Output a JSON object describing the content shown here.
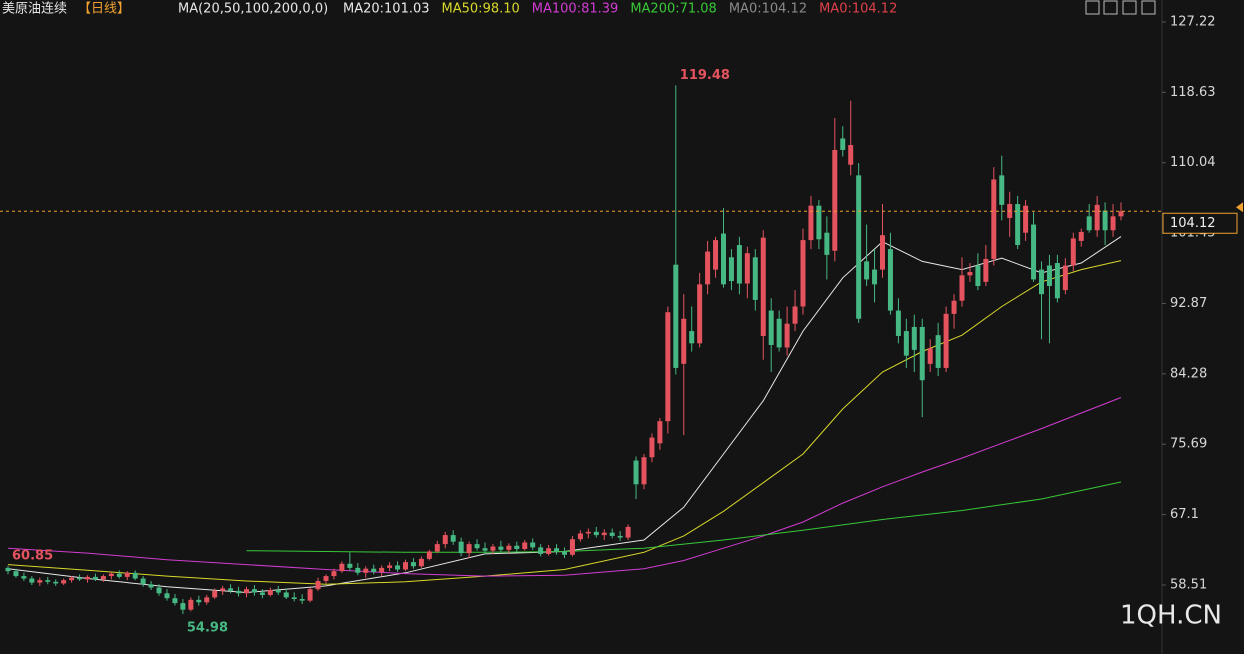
{
  "chart_data": {
    "type": "candlestick",
    "title": "美原油连续",
    "period": "【日线】",
    "indicator": "MA(20,50,100,200,0,0)",
    "up_color": "#e5535f",
    "down_color": "#46b883",
    "ylim": [
      50.09,
      129.9
    ],
    "yticks": [
      58.51,
      67.1,
      75.69,
      84.28,
      92.87,
      101.45,
      110.04,
      118.63,
      127.22
    ],
    "last_price": 104.12,
    "candles": [
      [
        60.6,
        60.85,
        59.8,
        60.2
      ],
      [
        60.2,
        60.5,
        59.4,
        59.6
      ],
      [
        59.6,
        60.0,
        59.0,
        59.3
      ],
      [
        59.3,
        59.6,
        58.5,
        58.8
      ],
      [
        58.8,
        59.4,
        58.4,
        59.1
      ],
      [
        59.1,
        59.5,
        58.6,
        58.9
      ],
      [
        58.9,
        59.2,
        58.4,
        58.7
      ],
      [
        58.7,
        59.3,
        58.5,
        59.1
      ],
      [
        59.1,
        59.6,
        58.8,
        59.4
      ],
      [
        59.4,
        59.8,
        59.0,
        59.2
      ],
      [
        59.2,
        59.7,
        58.8,
        59.5
      ],
      [
        59.5,
        59.9,
        59.0,
        59.2
      ],
      [
        59.2,
        59.8,
        58.9,
        59.6
      ],
      [
        59.6,
        60.1,
        59.2,
        59.9
      ],
      [
        59.9,
        60.3,
        59.3,
        59.5
      ],
      [
        59.5,
        60.2,
        59.1,
        60.0
      ],
      [
        60.0,
        60.3,
        59.1,
        59.3
      ],
      [
        59.3,
        59.6,
        58.3,
        58.6
      ],
      [
        58.6,
        59.0,
        57.9,
        58.2
      ],
      [
        58.2,
        58.6,
        57.2,
        57.5
      ],
      [
        57.5,
        58.0,
        56.6,
        56.9
      ],
      [
        56.9,
        57.4,
        56.0,
        56.3
      ],
      [
        56.3,
        56.8,
        54.98,
        55.5
      ],
      [
        55.5,
        57.0,
        55.3,
        56.7
      ],
      [
        56.7,
        57.2,
        56.0,
        56.4
      ],
      [
        56.4,
        57.3,
        56.1,
        57.0
      ],
      [
        57.0,
        58.1,
        56.8,
        57.8
      ],
      [
        57.8,
        58.4,
        57.3,
        58.1
      ],
      [
        58.1,
        58.6,
        57.5,
        57.8
      ],
      [
        57.8,
        58.3,
        57.1,
        57.5
      ],
      [
        57.5,
        58.3,
        57.0,
        58.0
      ],
      [
        58.0,
        58.5,
        57.2,
        57.6
      ],
      [
        57.6,
        58.0,
        56.9,
        57.3
      ],
      [
        57.3,
        58.2,
        57.1,
        57.9
      ],
      [
        57.9,
        58.4,
        57.3,
        57.6
      ],
      [
        57.6,
        58.1,
        56.8,
        57.0
      ],
      [
        57.0,
        57.6,
        56.5,
        56.8
      ],
      [
        56.8,
        57.4,
        56.2,
        56.6
      ],
      [
        56.6,
        58.2,
        56.4,
        58.0
      ],
      [
        58.0,
        59.4,
        57.8,
        59.0
      ],
      [
        59.0,
        59.8,
        58.7,
        59.6
      ],
      [
        59.6,
        60.5,
        59.2,
        60.2
      ],
      [
        60.2,
        61.4,
        60.0,
        61.1
      ],
      [
        61.1,
        62.5,
        60.2,
        60.6
      ],
      [
        60.6,
        61.2,
        59.7,
        60.0
      ],
      [
        60.0,
        60.8,
        59.4,
        60.5
      ],
      [
        60.5,
        61.0,
        59.8,
        60.1
      ],
      [
        60.1,
        60.9,
        59.6,
        60.6
      ],
      [
        60.6,
        61.3,
        60.2,
        60.9
      ],
      [
        60.9,
        61.4,
        60.1,
        60.4
      ],
      [
        60.4,
        61.6,
        60.2,
        61.3
      ],
      [
        61.3,
        61.8,
        60.5,
        60.8
      ],
      [
        60.8,
        62.0,
        60.6,
        61.7
      ],
      [
        61.7,
        62.8,
        61.5,
        62.6
      ],
      [
        62.6,
        63.9,
        62.4,
        63.5
      ],
      [
        63.5,
        65.0,
        63.0,
        64.6
      ],
      [
        64.6,
        65.2,
        63.4,
        63.8
      ],
      [
        63.8,
        64.3,
        62.0,
        62.4
      ],
      [
        62.4,
        63.8,
        61.8,
        63.5
      ],
      [
        63.5,
        64.1,
        62.7,
        63.0
      ],
      [
        63.0,
        63.7,
        62.2,
        62.7
      ],
      [
        62.7,
        63.5,
        62.3,
        63.2
      ],
      [
        63.2,
        63.9,
        62.5,
        62.8
      ],
      [
        62.8,
        63.6,
        62.4,
        63.3
      ],
      [
        63.3,
        63.8,
        62.6,
        62.9
      ],
      [
        62.9,
        64.0,
        62.7,
        63.7
      ],
      [
        63.7,
        64.2,
        62.8,
        63.1
      ],
      [
        63.1,
        63.5,
        62.0,
        62.3
      ],
      [
        62.3,
        63.4,
        62.1,
        63.0
      ],
      [
        63.0,
        63.5,
        62.2,
        62.6
      ],
      [
        62.6,
        63.1,
        61.8,
        62.2
      ],
      [
        62.2,
        64.5,
        62.0,
        64.1
      ],
      [
        64.1,
        65.2,
        63.8,
        64.8
      ],
      [
        64.8,
        65.4,
        64.2,
        65.0
      ],
      [
        65.0,
        65.6,
        64.3,
        64.6
      ],
      [
        64.6,
        65.3,
        64.0,
        64.9
      ],
      [
        64.9,
        65.4,
        64.2,
        64.5
      ],
      [
        64.5,
        65.1,
        63.9,
        64.3
      ],
      [
        64.3,
        65.9,
        64.0,
        65.6
      ],
      [
        73.7,
        74.2,
        69.0,
        70.8
      ],
      [
        70.8,
        74.5,
        70.2,
        74.1
      ],
      [
        74.1,
        77.0,
        73.5,
        76.5
      ],
      [
        75.8,
        78.9,
        75.0,
        78.5
      ],
      [
        78.5,
        92.5,
        77.0,
        91.8
      ],
      [
        97.6,
        119.48,
        84.2,
        85.0
      ],
      [
        85.5,
        94.0,
        76.8,
        91.0
      ],
      [
        89.5,
        92.5,
        87.0,
        88.0
      ],
      [
        88.0,
        96.6,
        87.5,
        95.2
      ],
      [
        95.2,
        100.5,
        94.0,
        99.2
      ],
      [
        97.0,
        101.0,
        96.0,
        100.6
      ],
      [
        101.4,
        104.5,
        94.8,
        95.2
      ],
      [
        98.5,
        99.5,
        94.5,
        95.6
      ],
      [
        100.0,
        101.0,
        94.0,
        95.3
      ],
      [
        95.3,
        99.8,
        93.5,
        99.0
      ],
      [
        98.5,
        99.5,
        92.0,
        93.3
      ],
      [
        88.9,
        101.8,
        86.0,
        100.9
      ],
      [
        92.0,
        93.5,
        84.5,
        87.8
      ],
      [
        91.0,
        92.0,
        87.0,
        87.5
      ],
      [
        87.5,
        92.5,
        86.5,
        90.4
      ],
      [
        90.4,
        94.5,
        89.5,
        92.5
      ],
      [
        92.5,
        102.0,
        91.5,
        100.6
      ],
      [
        100.6,
        106.0,
        99.5,
        104.8
      ],
      [
        104.8,
        105.5,
        99.5,
        100.7
      ],
      [
        101.5,
        103.5,
        95.8,
        98.8
      ],
      [
        99.3,
        115.5,
        98.0,
        111.6
      ],
      [
        113.0,
        114.5,
        110.8,
        111.6
      ],
      [
        109.8,
        117.6,
        108.5,
        112.2
      ],
      [
        108.5,
        110.0,
        90.5,
        91.0
      ],
      [
        98.0,
        102.5,
        95.0,
        95.8
      ],
      [
        97.0,
        99.5,
        93.0,
        95.2
      ],
      [
        97.0,
        105.0,
        96.0,
        101.2
      ],
      [
        99.5,
        101.5,
        91.5,
        92.0
      ],
      [
        92.0,
        93.5,
        88.0,
        88.9
      ],
      [
        89.5,
        91.0,
        85.0,
        86.5
      ],
      [
        90.0,
        91.5,
        84.5,
        87.2
      ],
      [
        90.0,
        91.0,
        79.0,
        83.5
      ],
      [
        85.5,
        88.5,
        84.5,
        87.4
      ],
      [
        89.0,
        90.5,
        84.0,
        85.0
      ],
      [
        85.0,
        92.5,
        84.5,
        91.6
      ],
      [
        91.6,
        94.0,
        89.8,
        93.2
      ],
      [
        93.2,
        98.5,
        92.5,
        96.3
      ],
      [
        96.3,
        97.8,
        95.5,
        96.7
      ],
      [
        97.5,
        99.0,
        94.5,
        95.0
      ],
      [
        95.5,
        100.0,
        95.0,
        98.3
      ],
      [
        98.3,
        109.5,
        97.5,
        108.0
      ],
      [
        108.5,
        110.9,
        103.0,
        104.9
      ],
      [
        103.3,
        106.5,
        101.0,
        105.0
      ],
      [
        105.0,
        106.0,
        99.5,
        100.0
      ],
      [
        101.5,
        105.5,
        100.5,
        104.8
      ],
      [
        102.5,
        104.0,
        95.5,
        95.8
      ],
      [
        97.0,
        98.0,
        88.5,
        94.0
      ],
      [
        97.5,
        98.8,
        88.0,
        95.0
      ],
      [
        97.8,
        98.8,
        93.0,
        93.5
      ],
      [
        94.5,
        98.4,
        94.0,
        97.5
      ],
      [
        97.5,
        101.5,
        96.8,
        100.8
      ],
      [
        100.5,
        102.0,
        99.8,
        101.6
      ],
      [
        103.5,
        105.0,
        101.5,
        101.8
      ],
      [
        101.8,
        106.0,
        101.0,
        104.9
      ],
      [
        104.2,
        105.2,
        100.0,
        101.8
      ],
      [
        101.8,
        105.0,
        101.0,
        103.5
      ],
      [
        103.5,
        105.2,
        103.0,
        104.12
      ]
    ],
    "series": [
      {
        "name": "MA20",
        "legend": "MA20:101.03",
        "color": "#e8e8e8",
        "x": [
          0,
          10,
          20,
          30,
          40,
          50,
          60,
          70,
          80,
          85,
          90,
          95,
          100,
          105,
          110,
          115,
          120,
          125,
          130,
          135,
          140
        ],
        "values": [
          60.5,
          59.3,
          58.3,
          57.6,
          58.4,
          60.0,
          62.3,
          62.6,
          64.0,
          68.0,
          74.5,
          81.0,
          89.5,
          96.0,
          100.4,
          98.0,
          97.0,
          98.4,
          96.6,
          97.8,
          101.03
        ]
      },
      {
        "name": "MA50",
        "legend": "MA50:98.10",
        "color": "#d8d82c",
        "x": [
          0,
          10,
          20,
          30,
          40,
          50,
          60,
          70,
          80,
          85,
          90,
          95,
          100,
          105,
          110,
          115,
          120,
          125,
          130,
          135,
          140
        ],
        "values": [
          61.0,
          60.3,
          59.6,
          59.0,
          58.6,
          58.9,
          59.6,
          60.4,
          62.5,
          64.5,
          67.5,
          71.0,
          74.5,
          80.0,
          84.5,
          87.0,
          89.0,
          92.5,
          95.5,
          97.0,
          98.1
        ]
      },
      {
        "name": "MA100",
        "legend": "MA100:81.39",
        "color": "#d23cd2",
        "x": [
          0,
          10,
          20,
          30,
          40,
          50,
          60,
          70,
          80,
          85,
          90,
          95,
          100,
          105,
          110,
          115,
          120,
          125,
          130,
          135,
          140
        ],
        "values": [
          63.0,
          62.4,
          61.6,
          61.0,
          60.4,
          59.9,
          59.6,
          59.7,
          60.5,
          61.5,
          63.0,
          64.5,
          66.2,
          68.5,
          70.5,
          72.3,
          74.0,
          75.8,
          77.6,
          79.5,
          81.39
        ]
      },
      {
        "name": "MA200",
        "legend": "MA200:71.08",
        "color": "#38c838",
        "x": [
          30,
          40,
          50,
          60,
          70,
          80,
          90,
          100,
          110,
          120,
          130,
          140
        ],
        "values": [
          62.7,
          62.6,
          62.5,
          62.5,
          62.6,
          63.0,
          64.0,
          65.2,
          66.5,
          67.6,
          69.0,
          71.08
        ]
      }
    ],
    "extra_legend": [
      {
        "text": "MA0:104.12",
        "color": "#8a8a8a"
      },
      {
        "text": "MA0:104.12",
        "color": "#e0404a"
      }
    ],
    "annotations": [
      {
        "value": 119.48,
        "index": 84,
        "color": "#e5535f"
      },
      {
        "value": 60.85,
        "index": 0,
        "color": "#e5535f"
      },
      {
        "value": 54.98,
        "index": 22,
        "color": "#46b883"
      }
    ],
    "watermark": "1QH.CN"
  }
}
